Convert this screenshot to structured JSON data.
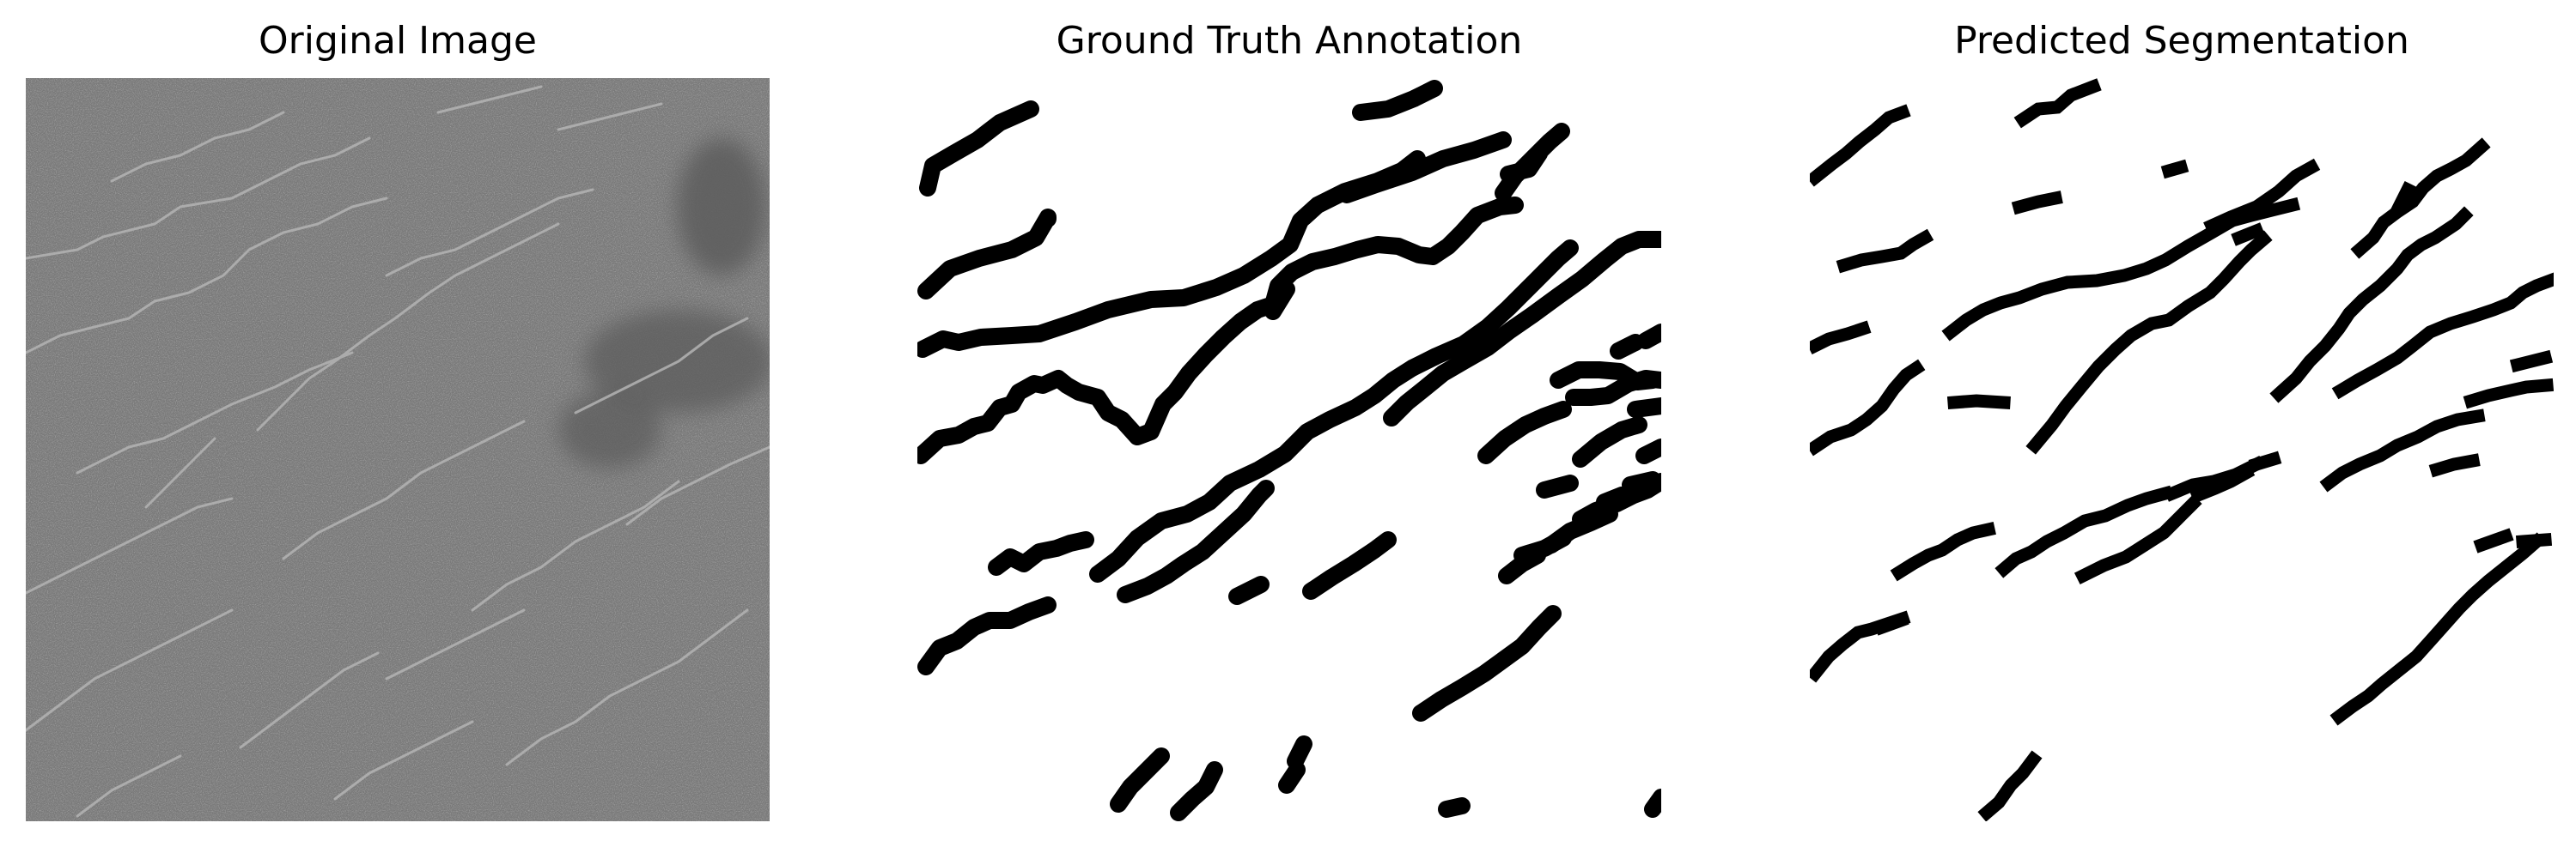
{
  "panels": [
    {
      "title": "Original Image",
      "kind": "grayscale-crack-photo",
      "base_color": "#7e7e7e",
      "crack_color": "#b4b4b4",
      "stain_color": "#5e5e5e"
    },
    {
      "title": "Ground Truth Annotation",
      "kind": "binary-mask",
      "background": "#ffffff",
      "foreground": "#000000"
    },
    {
      "title": "Predicted Segmentation",
      "kind": "binary-mask",
      "background": "#ffffff",
      "foreground": "#000000"
    }
  ]
}
